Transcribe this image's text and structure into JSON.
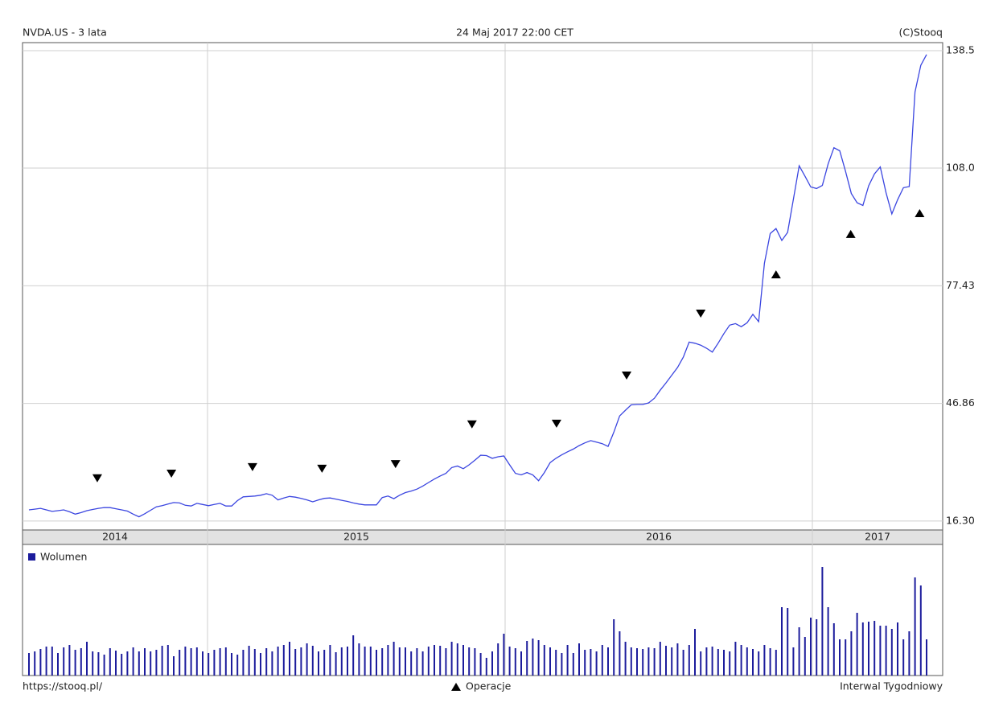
{
  "chart_data": {
    "type": "line",
    "title": "NVDA.US - 3 lata",
    "subtitle": "24 Maj 2017 22:00 CET",
    "source": "(C)Stooq",
    "url": "https://stooq.pl/",
    "markers_legend": "Operacje",
    "interval": "Interwal Tygodniowy",
    "color": "#3b46e0",
    "grid": true,
    "ylim": [
      14.4,
      140.6
    ],
    "yticks": [
      {
        "value": 16.3,
        "label": "16.30"
      },
      46.86,
      77.43,
      {
        "value": 108,
        "label": "108.0"
      },
      138.5
    ],
    "xtick_labels": [
      "2014",
      "2015",
      "2016",
      "2017"
    ],
    "values": [
      19.2,
      19.4,
      19.6,
      19.2,
      18.8,
      19.0,
      19.2,
      18.7,
      18.1,
      18.5,
      19.0,
      19.3,
      19.6,
      19.8,
      19.8,
      19.5,
      19.2,
      18.9,
      18.1,
      17.4,
      18.2,
      19.1,
      20.0,
      20.3,
      20.7,
      21.1,
      21.0,
      20.4,
      20.2,
      20.9,
      20.6,
      20.3,
      20.6,
      20.9,
      20.2,
      20.2,
      21.6,
      22.6,
      22.7,
      22.8,
      23.0,
      23.4,
      23.0,
      21.8,
      22.3,
      22.7,
      22.5,
      22.2,
      21.8,
      21.3,
      21.8,
      22.2,
      22.3,
      22.0,
      21.7,
      21.4,
      21.0,
      20.7,
      20.5,
      20.5,
      20.5,
      22.4,
      22.8,
      22.1,
      23.0,
      23.7,
      24.1,
      24.6,
      25.4,
      26.3,
      27.2,
      28.0,
      28.7,
      30.2,
      30.6,
      29.9,
      30.9,
      32.1,
      33.4,
      33.3,
      32.6,
      33.0,
      33.2,
      30.9,
      28.7,
      28.3,
      28.9,
      28.3,
      26.8,
      28.9,
      31.5,
      32.6,
      33.5,
      34.3,
      35.0,
      35.9,
      36.6,
      37.2,
      36.8,
      36.4,
      35.7,
      39.4,
      43.6,
      45.1,
      46.5,
      46.6,
      46.6,
      47.0,
      48.2,
      50.3,
      52.2,
      54.2,
      56.2,
      58.9,
      62.8,
      62.5,
      62.0,
      61.2,
      60.2,
      62.5,
      65.0,
      67.2,
      67.6,
      66.8,
      67.8,
      70.0,
      68.1,
      83.3,
      91.0,
      92.3,
      89.2,
      91.3,
      99.9,
      108.6,
      105.9,
      103.1,
      102.7,
      103.5,
      109.1,
      113.3,
      112.5,
      107.2,
      101.4,
      99.0,
      98.3,
      103.4,
      106.5,
      108.3,
      101.6,
      96.1,
      99.8,
      102.9,
      103.2,
      127.8,
      134.7,
      137.5
    ],
    "markers": [
      {
        "x": 11.8,
        "value": 27.4,
        "shape": "down"
      },
      {
        "x": 24.6,
        "value": 28.6,
        "shape": "down"
      },
      {
        "x": 38.6,
        "value": 30.3,
        "shape": "down"
      },
      {
        "x": 50.6,
        "value": 29.9,
        "shape": "down"
      },
      {
        "x": 63.3,
        "value": 31.1,
        "shape": "down"
      },
      {
        "x": 76.5,
        "value": 41.4,
        "shape": "down"
      },
      {
        "x": 91.1,
        "value": 41.6,
        "shape": "down"
      },
      {
        "x": 103.2,
        "value": 54.1,
        "shape": "down"
      },
      {
        "x": 116,
        "value": 70.2,
        "shape": "down"
      },
      {
        "x": 129,
        "value": 80.4,
        "shape": "up"
      },
      {
        "x": 141.9,
        "value": 90.9,
        "shape": "up"
      },
      {
        "x": 153.8,
        "value": 96.3,
        "shape": "up"
      }
    ],
    "volume": {
      "name": "Wolumen",
      "color": "#1c1c9c",
      "ylim": [
        0,
        163
      ],
      "values": [
        28,
        30,
        33,
        36,
        36,
        28,
        35,
        38,
        32,
        34,
        42,
        30,
        29,
        26,
        34,
        31,
        27,
        30,
        35,
        30,
        34,
        30,
        32,
        37,
        38,
        24,
        32,
        36,
        34,
        35,
        30,
        28,
        32,
        34,
        35,
        28,
        26,
        32,
        37,
        33,
        28,
        34,
        30,
        36,
        38,
        42,
        33,
        35,
        40,
        37,
        30,
        32,
        38,
        29,
        35,
        36,
        50,
        40,
        36,
        36,
        32,
        34,
        38,
        42,
        35,
        35,
        30,
        34,
        30,
        36,
        38,
        37,
        34,
        42,
        40,
        38,
        35,
        34,
        28,
        22,
        30,
        40,
        52,
        36,
        34,
        30,
        43,
        46,
        44,
        38,
        35,
        32,
        28,
        38,
        28,
        40,
        32,
        33,
        30,
        38,
        35,
        70,
        55,
        42,
        35,
        34,
        33,
        35,
        34,
        42,
        37,
        35,
        40,
        32,
        38,
        58,
        30,
        35,
        36,
        33,
        32,
        30,
        42,
        38,
        35,
        33,
        30,
        38,
        34,
        32,
        85,
        84,
        35,
        60,
        48,
        72,
        70,
        135,
        85,
        65,
        45,
        45,
        55,
        78,
        66,
        67,
        68,
        62,
        62,
        58,
        66,
        45,
        55,
        122,
        112,
        45
      ]
    }
  }
}
